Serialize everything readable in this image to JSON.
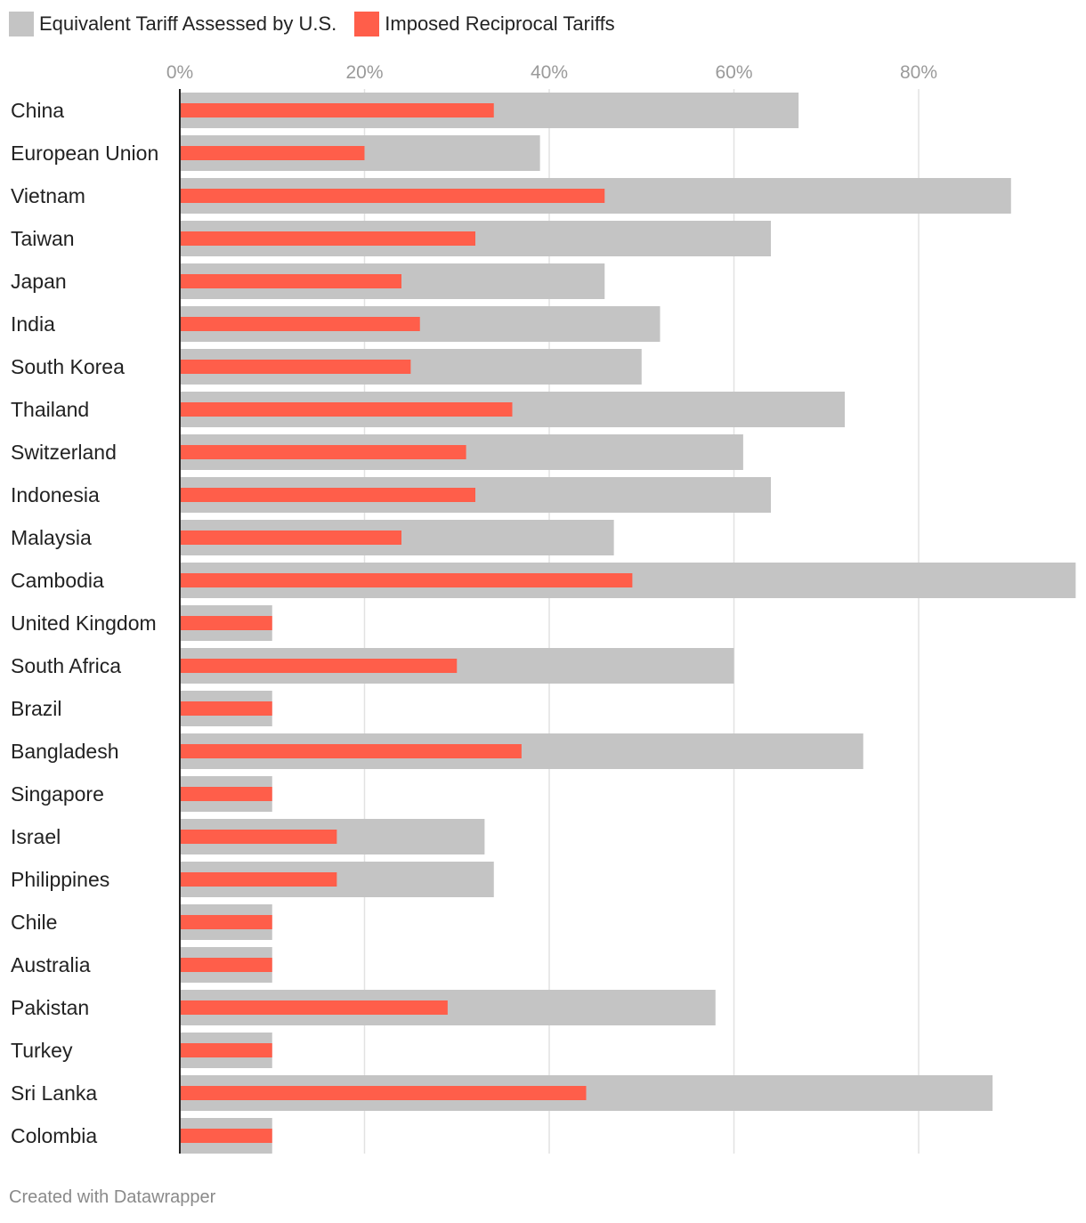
{
  "chart_data": {
    "type": "bar",
    "orientation": "horizontal",
    "title": "",
    "xlabel": "",
    "ylabel": "",
    "xlim": [
      0,
      97
    ],
    "x_ticks": [
      0,
      20,
      40,
      60,
      80
    ],
    "x_tick_format": "{v}%",
    "grid": true,
    "legend_position": "top-left",
    "colors": {
      "equivalent": "#c4c4c4",
      "imposed": "#ff5e4a",
      "grid": "#e2e2e2",
      "axis": "#222222"
    },
    "categories": [
      "China",
      "European Union",
      "Vietnam",
      "Taiwan",
      "Japan",
      "India",
      "South Korea",
      "Thailand",
      "Switzerland",
      "Indonesia",
      "Malaysia",
      "Cambodia",
      "United Kingdom",
      "South Africa",
      "Brazil",
      "Bangladesh",
      "Singapore",
      "Israel",
      "Philippines",
      "Chile",
      "Australia",
      "Pakistan",
      "Turkey",
      "Sri Lanka",
      "Colombia"
    ],
    "series": [
      {
        "name": "Equivalent Tariff Assessed by U.S.",
        "color": "#c4c4c4",
        "values": [
          67,
          39,
          90,
          64,
          46,
          52,
          50,
          72,
          61,
          64,
          47,
          97,
          10,
          60,
          10,
          74,
          10,
          33,
          34,
          10,
          10,
          58,
          10,
          88,
          10
        ]
      },
      {
        "name": "Imposed Reciprocal Tariffs",
        "color": "#ff5e4a",
        "values": [
          34,
          20,
          46,
          32,
          24,
          26,
          25,
          36,
          31,
          32,
          24,
          49,
          10,
          30,
          10,
          37,
          10,
          17,
          17,
          10,
          10,
          29,
          10,
          44,
          10
        ]
      }
    ]
  },
  "legend": {
    "items": [
      {
        "label": "Equivalent Tariff Assessed by U.S.",
        "color": "#c4c4c4"
      },
      {
        "label": "Imposed Reciprocal Tariffs",
        "color": "#ff5e4a"
      }
    ]
  },
  "footer": {
    "credit": "Created with Datawrapper"
  }
}
